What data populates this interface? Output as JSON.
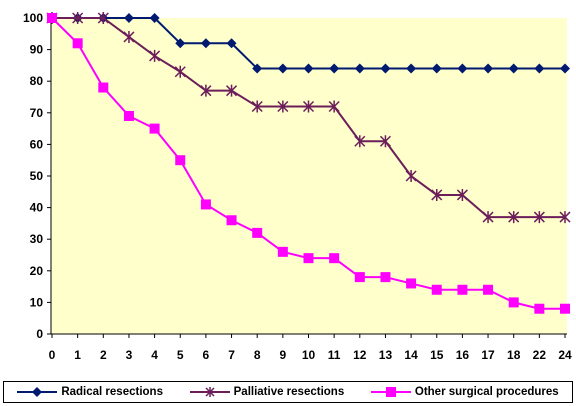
{
  "chart_data": {
    "type": "line",
    "title": "",
    "xlabel": "",
    "ylabel": "",
    "x": [
      "0",
      "1",
      "2",
      "3",
      "4",
      "5",
      "6",
      "7",
      "8",
      "9",
      "10",
      "11",
      "12",
      "13",
      "14",
      "15",
      "16",
      "17",
      "18",
      "22",
      "24"
    ],
    "ylim": [
      0,
      100
    ],
    "yticks": [
      0,
      10,
      20,
      30,
      40,
      50,
      60,
      70,
      80,
      90,
      100
    ],
    "grid": false,
    "plot_background": "#ffffcc",
    "legend_position": "bottom",
    "series": [
      {
        "name": "Radical resections",
        "color": "#001a70",
        "marker": "diamond",
        "values": [
          100,
          100,
          100,
          100,
          100,
          92,
          92,
          92,
          84,
          84,
          84,
          84,
          84,
          84,
          84,
          84,
          84,
          84,
          84,
          84,
          84
        ]
      },
      {
        "name": "Palliative resections",
        "color": "#6b1e5a",
        "marker": "star",
        "values": [
          100,
          100,
          100,
          94,
          88,
          83,
          77,
          77,
          72,
          72,
          72,
          72,
          61,
          61,
          50,
          44,
          44,
          37,
          37,
          37,
          37
        ]
      },
      {
        "name": "Other surgical procedures",
        "color": "#ff00ff",
        "marker": "square",
        "values": [
          100,
          92,
          78,
          69,
          65,
          55,
          41,
          36,
          32,
          26,
          24,
          24,
          18,
          18,
          16,
          14,
          14,
          14,
          10,
          8,
          8
        ]
      }
    ]
  }
}
